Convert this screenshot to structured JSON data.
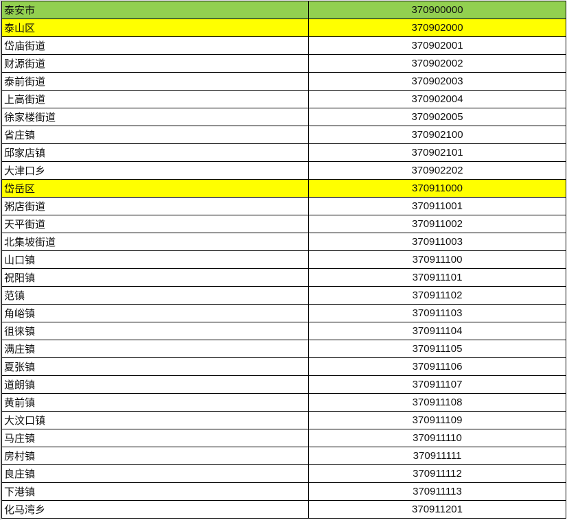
{
  "colors": {
    "city_row": "#92d050",
    "district_row": "#ffff00"
  },
  "rows": [
    {
      "name": "泰安市",
      "code": "370900000",
      "level": "city"
    },
    {
      "name": "泰山区",
      "code": "370902000",
      "level": "district"
    },
    {
      "name": "岱庙街道",
      "code": "370902001",
      "level": "town"
    },
    {
      "name": "财源街道",
      "code": "370902002",
      "level": "town"
    },
    {
      "name": "泰前街道",
      "code": "370902003",
      "level": "town"
    },
    {
      "name": "上高街道",
      "code": "370902004",
      "level": "town"
    },
    {
      "name": "徐家楼街道",
      "code": "370902005",
      "level": "town"
    },
    {
      "name": "省庄镇",
      "code": "370902100",
      "level": "town"
    },
    {
      "name": "邱家店镇",
      "code": "370902101",
      "level": "town"
    },
    {
      "name": "大津口乡",
      "code": "370902202",
      "level": "town"
    },
    {
      "name": "岱岳区",
      "code": "370911000",
      "level": "district"
    },
    {
      "name": "粥店街道",
      "code": "370911001",
      "level": "town"
    },
    {
      "name": "天平街道",
      "code": "370911002",
      "level": "town"
    },
    {
      "name": "北集坡街道",
      "code": "370911003",
      "level": "town"
    },
    {
      "name": "山口镇",
      "code": "370911100",
      "level": "town"
    },
    {
      "name": "祝阳镇",
      "code": "370911101",
      "level": "town"
    },
    {
      "name": "范镇",
      "code": "370911102",
      "level": "town"
    },
    {
      "name": "角峪镇",
      "code": "370911103",
      "level": "town"
    },
    {
      "name": "徂徕镇",
      "code": "370911104",
      "level": "town"
    },
    {
      "name": "满庄镇",
      "code": "370911105",
      "level": "town"
    },
    {
      "name": "夏张镇",
      "code": "370911106",
      "level": "town"
    },
    {
      "name": "道朗镇",
      "code": "370911107",
      "level": "town"
    },
    {
      "name": "黄前镇",
      "code": "370911108",
      "level": "town"
    },
    {
      "name": "大汶口镇",
      "code": "370911109",
      "level": "town"
    },
    {
      "name": "马庄镇",
      "code": "370911110",
      "level": "town"
    },
    {
      "name": "房村镇",
      "code": "370911111",
      "level": "town"
    },
    {
      "name": "良庄镇",
      "code": "370911112",
      "level": "town"
    },
    {
      "name": "下港镇",
      "code": "370911113",
      "level": "town"
    },
    {
      "name": "化马湾乡",
      "code": "370911201",
      "level": "town"
    }
  ]
}
